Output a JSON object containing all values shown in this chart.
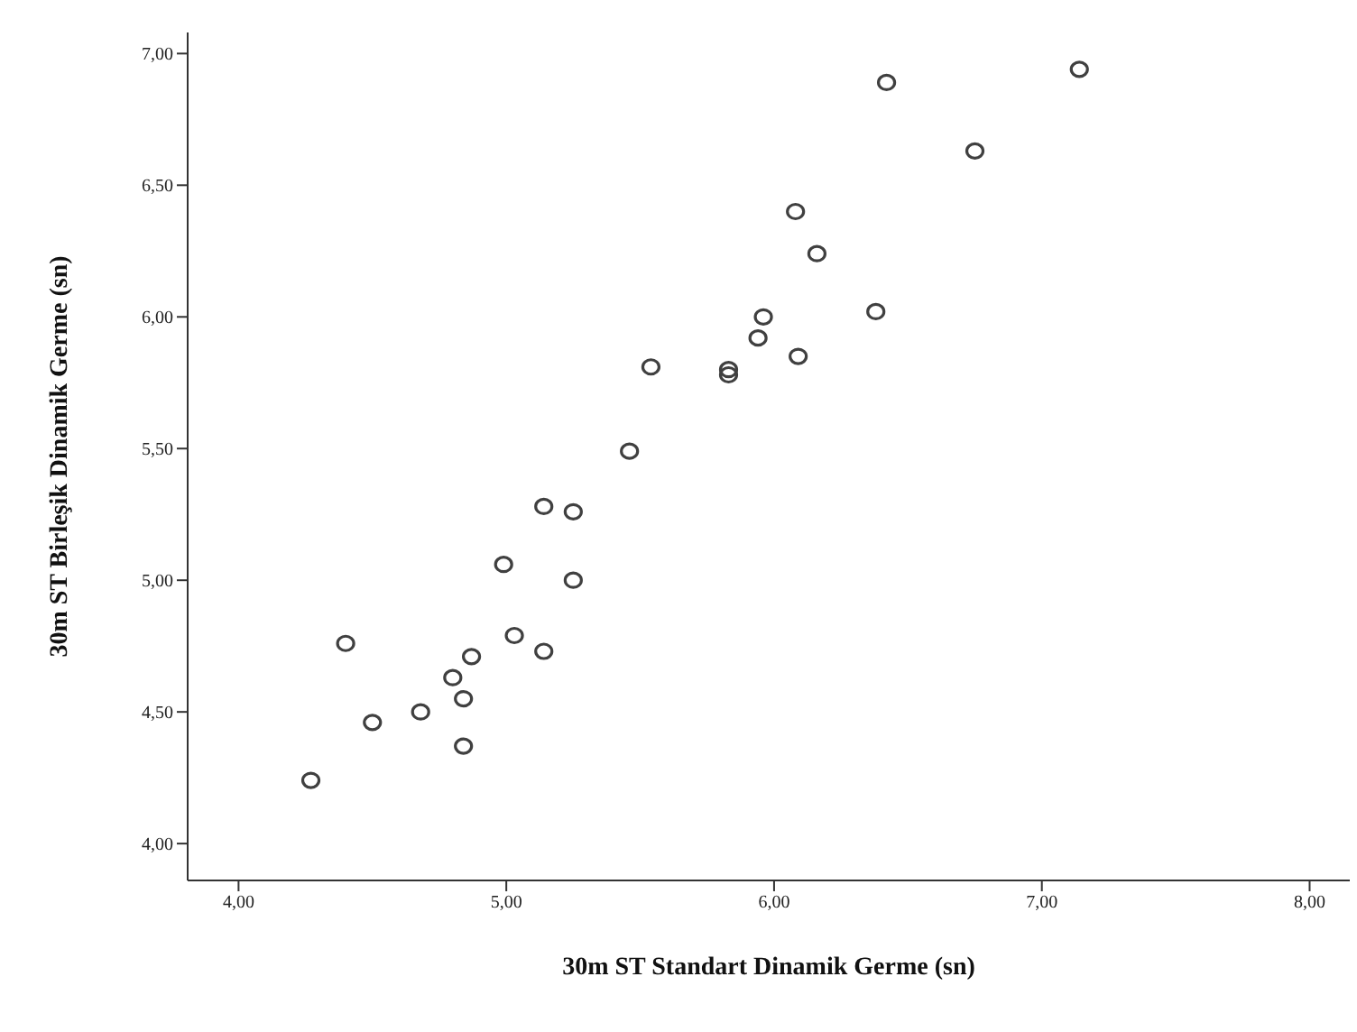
{
  "chart_data": {
    "type": "scatter",
    "xlabel": "30m ST Standart Dinamik Germe (sn)",
    "ylabel": "30m ST Birleşik Dinamik Germe (sn)",
    "x": [
      4.27,
      4.4,
      4.5,
      4.68,
      4.8,
      4.84,
      4.84,
      4.87,
      4.99,
      5.03,
      5.14,
      5.14,
      5.25,
      5.25,
      5.46,
      5.54,
      5.83,
      5.83,
      5.94,
      5.96,
      6.09,
      6.08,
      6.16,
      6.38,
      6.42,
      6.75,
      7.14
    ],
    "series": [
      {
        "color": "#404040",
        "values": [
          4.24,
          4.76,
          4.46,
          4.5,
          4.63,
          4.55,
          4.37,
          4.71,
          5.06,
          4.79,
          4.73,
          5.28,
          5.26,
          5.0,
          5.49,
          5.81,
          5.8,
          5.78,
          5.92,
          6.0,
          5.85,
          6.4,
          6.24,
          6.02,
          6.89,
          6.63,
          6.94
        ]
      }
    ],
    "xlim": [
      3.81,
      8.15
    ],
    "ylim": [
      3.86,
      7.08
    ],
    "xticks": [
      {
        "value": 4,
        "label": "4,00"
      },
      {
        "value": 5,
        "label": "5,00"
      },
      {
        "value": 6,
        "label": "6,00"
      },
      {
        "value": 7,
        "label": "7,00"
      },
      {
        "value": 8,
        "label": "8,00"
      }
    ],
    "yticks": [
      {
        "value": 4,
        "label": "4,00"
      },
      {
        "value": 4.5,
        "label": "4,50"
      },
      {
        "value": 5,
        "label": "5,00"
      },
      {
        "value": 5.5,
        "label": "5,50"
      },
      {
        "value": 6,
        "label": "6,00"
      },
      {
        "value": 6.5,
        "label": "6,50"
      },
      {
        "value": 7,
        "label": "7,00"
      }
    ],
    "marker": "circle",
    "grid": false,
    "legend": false
  }
}
